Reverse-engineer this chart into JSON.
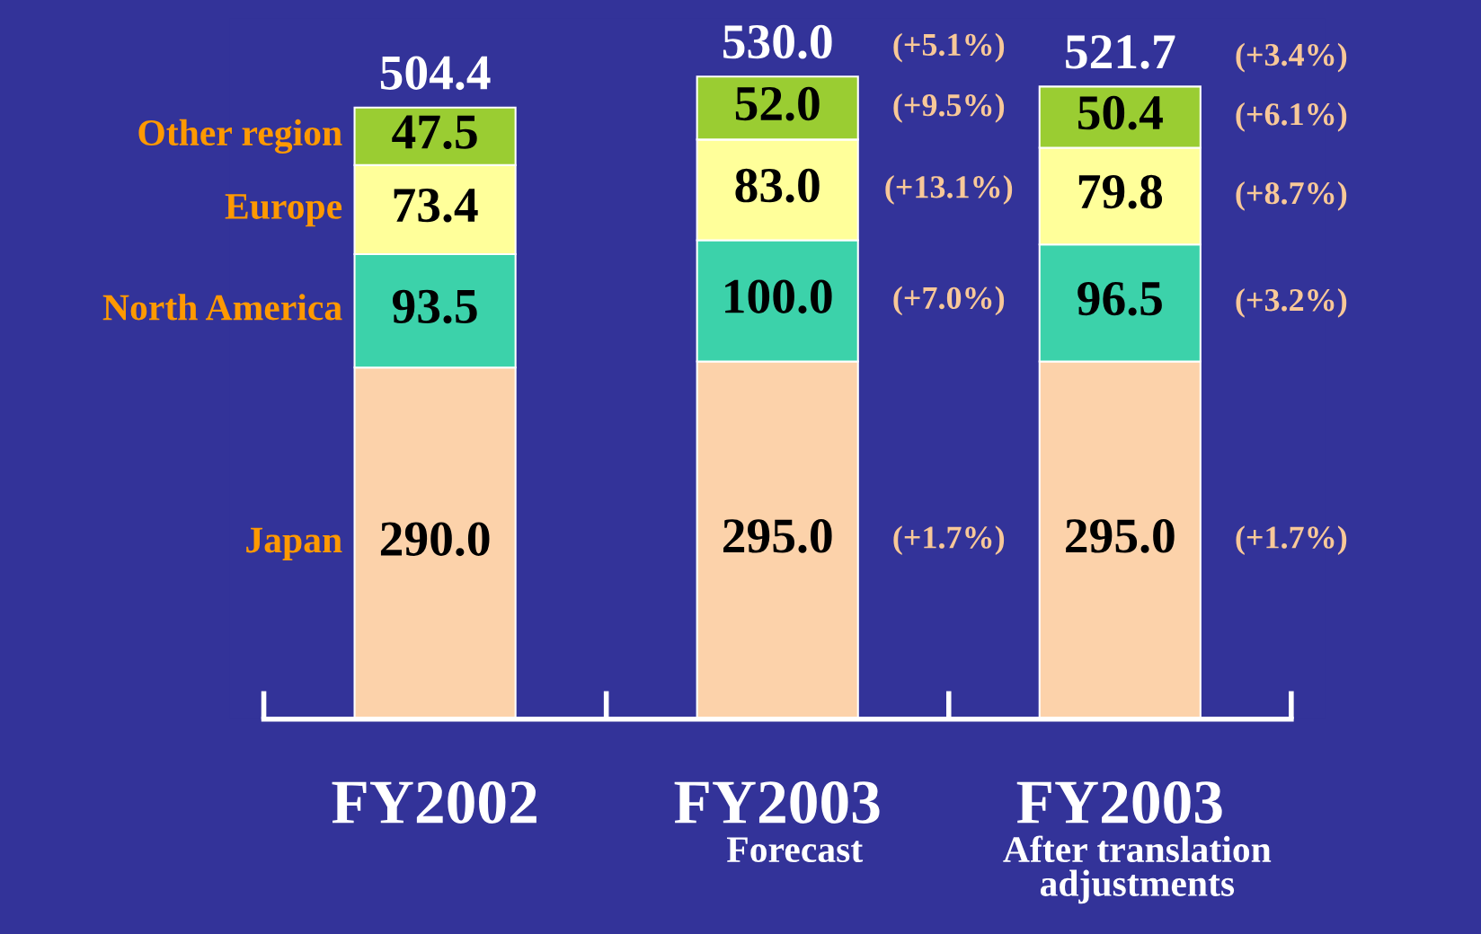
{
  "chart_data": {
    "type": "bar",
    "stacked": true,
    "categories": [
      "FY2002\n",
      "FY2003\nForecast",
      "FY2003\nAfter translation\nadjustments"
    ],
    "series": [
      {
        "name": "Japan",
        "color": "#fcd2aa",
        "values": [
          290.0,
          295.0,
          295.0
        ],
        "value_labels": [
          "290.0",
          "295.0",
          "295.0"
        ]
      },
      {
        "name": "North America",
        "color": "#3cd2aa",
        "values": [
          93.5,
          100.0,
          96.5
        ],
        "value_labels": [
          "93.5",
          "100.0",
          "96.5"
        ]
      },
      {
        "name": "Europe",
        "color": "#ffff9a",
        "values": [
          73.4,
          83.0,
          79.8
        ],
        "value_labels": [
          "73.4",
          "83.0",
          "79.8"
        ]
      },
      {
        "name": "Other region",
        "color": "#9acd32",
        "values": [
          47.5,
          52.0,
          50.4
        ],
        "value_labels": [
          "47.5",
          "52.0",
          "50.4"
        ]
      }
    ],
    "totals": [
      "504.4",
      "530.0",
      "521.7"
    ],
    "annotations": [
      "(+1.7%)",
      "(+7.0%)",
      "(+13.1%)",
      "(+9.5%)",
      "(+5.1%)",
      "(+1.7%)",
      "(+3.2%)",
      "(+8.7%)",
      "(+6.1%)",
      "(+3.4%)"
    ]
  }
}
